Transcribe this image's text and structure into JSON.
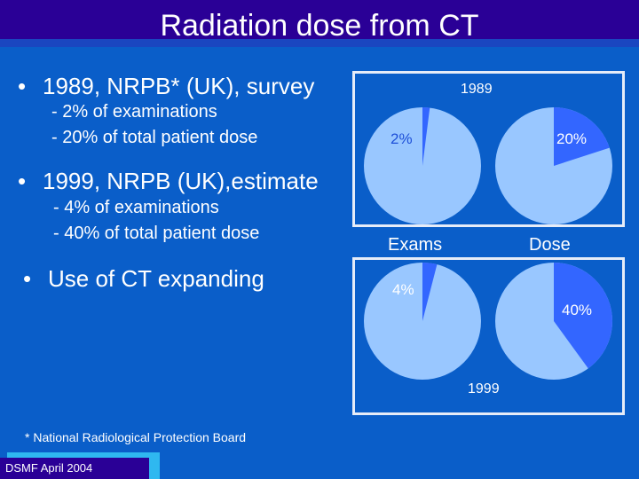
{
  "slide": {
    "title": "Radiation dose from CT",
    "bullets": [
      {
        "text": "1989, NRPB* (UK), survey",
        "subs": [
          "- 2% of examinations",
          "- 20% of total patient dose"
        ]
      },
      {
        "text": "1999, NRPB (UK),estimate",
        "subs": [
          "- 4% of examinations",
          "- 40% of total patient dose"
        ]
      },
      {
        "text": "Use of CT expanding",
        "subs": []
      }
    ],
    "bullet_char": "•",
    "footnote": "* National Radiological Protection Board",
    "footer": "DSMF April 2004"
  },
  "charts": {
    "column_labels": [
      "Exams",
      "Dose"
    ],
    "panel_1989": {
      "year": "1989",
      "exams_label": "2%",
      "dose_label": "20%"
    },
    "panel_1999": {
      "year": "1999",
      "exams_label": "4%",
      "dose_label": "40%"
    }
  },
  "chart_data": [
    {
      "type": "pie",
      "title": "1989",
      "category": "Exams",
      "slices": [
        {
          "label": "2%",
          "value": 2
        },
        {
          "label": "",
          "value": 98
        }
      ]
    },
    {
      "type": "pie",
      "title": "1989",
      "category": "Dose",
      "slices": [
        {
          "label": "20%",
          "value": 20
        },
        {
          "label": "",
          "value": 80
        }
      ]
    },
    {
      "type": "pie",
      "title": "1999",
      "category": "Exams",
      "slices": [
        {
          "label": "4%",
          "value": 4
        },
        {
          "label": "",
          "value": 96
        }
      ]
    },
    {
      "type": "pie",
      "title": "1999",
      "category": "Dose",
      "slices": [
        {
          "label": "40%",
          "value": 40
        },
        {
          "label": "",
          "value": 60
        }
      ]
    }
  ],
  "colors": {
    "background": "#0a5ec9",
    "title_bar": "#2a0096",
    "pie_main": "#99c7ff",
    "pie_slice": "#3366ff",
    "label_blue": "#1d4fd8"
  }
}
